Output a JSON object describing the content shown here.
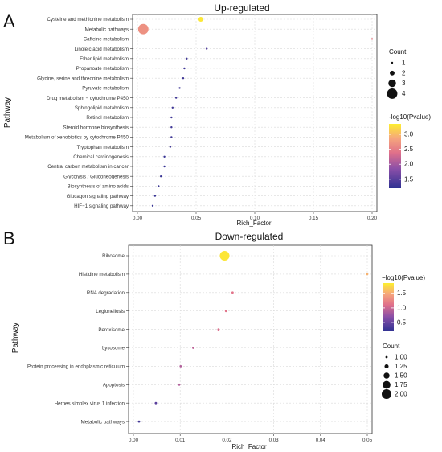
{
  "chart_data": [
    {
      "panel_label": "A",
      "type": "scatter",
      "title": "Up-regulated",
      "xlabel": "Rich_Factor",
      "ylabel": "Pathway",
      "xlim": [
        0,
        0.2
      ],
      "x_ticks": [
        "0.00",
        "0.05",
        "0.10",
        "0.15",
        "0.20"
      ],
      "grid": true,
      "size_legend": {
        "title": "Count",
        "values": [
          "1",
          "2",
          "3",
          "4"
        ]
      },
      "color_legend": {
        "title": "-log10(Pvalue)",
        "ticks": [
          "1.5",
          "2.0",
          "2.5",
          "3.0"
        ],
        "range": [
          1.2,
          3.35
        ],
        "colors": [
          "#2e3192",
          "#8a4fa8",
          "#e0708a",
          "#f6a77c",
          "#fdef2f"
        ]
      },
      "points": [
        {
          "pathway": "Cysteine and methionine metabolism",
          "rich_factor": 0.054,
          "count": 2,
          "neg_log10_p": 3.3
        },
        {
          "pathway": "Metabolic pathways",
          "rich_factor": 0.005,
          "count": 4,
          "neg_log10_p": 2.6
        },
        {
          "pathway": "Caffeine metabolism",
          "rich_factor": 0.2,
          "count": 1,
          "neg_log10_p": 2.4
        },
        {
          "pathway": "Linoleic acid metabolism",
          "rich_factor": 0.059,
          "count": 1,
          "neg_log10_p": 1.4
        },
        {
          "pathway": "Ether lipid metabolism",
          "rich_factor": 0.042,
          "count": 1,
          "neg_log10_p": 1.3
        },
        {
          "pathway": "Propanoate metabolism",
          "rich_factor": 0.04,
          "count": 1,
          "neg_log10_p": 1.3
        },
        {
          "pathway": "Glycine, serine and threonine metabolism",
          "rich_factor": 0.039,
          "count": 1,
          "neg_log10_p": 1.3
        },
        {
          "pathway": "Pyruvate metabolism",
          "rich_factor": 0.036,
          "count": 1,
          "neg_log10_p": 1.3
        },
        {
          "pathway": "Drug metabolism − cytochrome P450",
          "rich_factor": 0.033,
          "count": 1,
          "neg_log10_p": 1.3
        },
        {
          "pathway": "Sphingolipid metabolism",
          "rich_factor": 0.03,
          "count": 1,
          "neg_log10_p": 1.3
        },
        {
          "pathway": "Retinol metabolism",
          "rich_factor": 0.029,
          "count": 1,
          "neg_log10_p": 1.3
        },
        {
          "pathway": "Steroid hormone biosynthesis",
          "rich_factor": 0.029,
          "count": 1,
          "neg_log10_p": 1.3
        },
        {
          "pathway": "Metabolism of xenobiotics by cytochrome P450",
          "rich_factor": 0.029,
          "count": 1,
          "neg_log10_p": 1.3
        },
        {
          "pathway": "Tryptophan metabolism",
          "rich_factor": 0.028,
          "count": 1,
          "neg_log10_p": 1.3
        },
        {
          "pathway": "Chemical carcinogenesis",
          "rich_factor": 0.023,
          "count": 1,
          "neg_log10_p": 1.25
        },
        {
          "pathway": "Central carbon metabolism in cancer",
          "rich_factor": 0.023,
          "count": 1,
          "neg_log10_p": 1.25
        },
        {
          "pathway": "Glycolysis / Gluconeogenesis",
          "rich_factor": 0.02,
          "count": 1,
          "neg_log10_p": 1.25
        },
        {
          "pathway": "Biosynthesis of amino acids",
          "rich_factor": 0.018,
          "count": 1,
          "neg_log10_p": 1.25
        },
        {
          "pathway": "Glucagon signaling pathway",
          "rich_factor": 0.015,
          "count": 1,
          "neg_log10_p": 1.25
        },
        {
          "pathway": "HIF−1 signaling pathway",
          "rich_factor": 0.013,
          "count": 1,
          "neg_log10_p": 1.25
        }
      ]
    },
    {
      "panel_label": "B",
      "type": "scatter",
      "title": "Down-regulated",
      "xlabel": "Rich_Factor",
      "ylabel": "Pathway",
      "xlim": [
        0,
        0.05
      ],
      "x_ticks": [
        "0.00",
        "0.01",
        "0.02",
        "0.03",
        "0.04",
        "0.05"
      ],
      "grid": true,
      "size_legend": {
        "title": "Count",
        "values": [
          "1.00",
          "1.25",
          "1.50",
          "1.75",
          "2.00"
        ]
      },
      "color_legend": {
        "title": "−log10(Pvalue)",
        "ticks": [
          "0.5",
          "1.0",
          "1.5"
        ],
        "range": [
          0.2,
          1.85
        ],
        "colors": [
          "#2e3192",
          "#8a4fa8",
          "#e0708a",
          "#f6a77c",
          "#fdef2f"
        ]
      },
      "points": [
        {
          "pathway": "Ribosome",
          "rich_factor": 0.0195,
          "count": 2,
          "neg_log10_p": 1.8
        },
        {
          "pathway": "Histidine metabolism",
          "rich_factor": 0.05,
          "count": 1,
          "neg_log10_p": 1.5
        },
        {
          "pathway": "RNA degradation",
          "rich_factor": 0.0212,
          "count": 1,
          "neg_log10_p": 1.05
        },
        {
          "pathway": "Legionellosis",
          "rich_factor": 0.0198,
          "count": 1,
          "neg_log10_p": 1.05
        },
        {
          "pathway": "Peroxisome",
          "rich_factor": 0.0182,
          "count": 1,
          "neg_log10_p": 1.0
        },
        {
          "pathway": "Lysosome",
          "rich_factor": 0.0128,
          "count": 1,
          "neg_log10_p": 0.85
        },
        {
          "pathway": "Protein processing in endoplasmic reticulum",
          "rich_factor": 0.0101,
          "count": 1,
          "neg_log10_p": 0.8
        },
        {
          "pathway": "Apoptosis",
          "rich_factor": 0.0098,
          "count": 1,
          "neg_log10_p": 0.8
        },
        {
          "pathway": "Herpes simplex virus 1 infection",
          "rich_factor": 0.0048,
          "count": 1,
          "neg_log10_p": 0.4
        },
        {
          "pathway": "Metabolic pathways",
          "rich_factor": 0.0012,
          "count": 1,
          "neg_log10_p": 0.3
        }
      ]
    }
  ]
}
